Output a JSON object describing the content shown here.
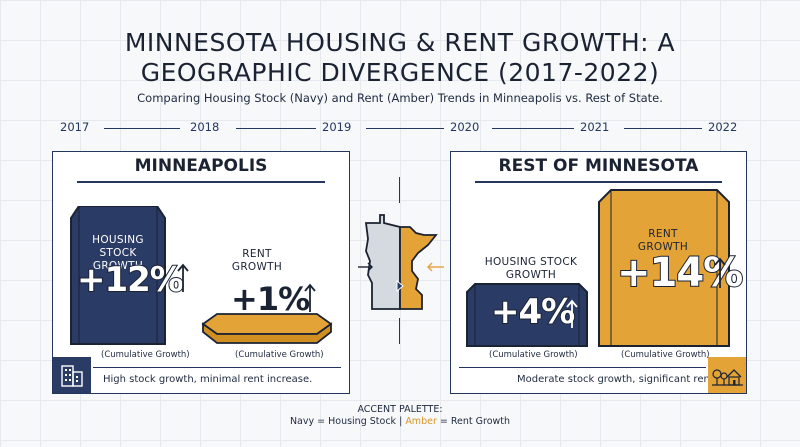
{
  "title_line1": "MINNESOTA HOUSING & RENT GROWTH: A",
  "title_line2": "GEOGRAPHIC DIVERGENCE (2017-2022)",
  "subtitle": "Comparing Housing Stock (Navy) and Rent (Amber) Trends in Minneapolis vs. Rest of State.",
  "timeline": [
    "2017",
    "2018",
    "2019",
    "2020",
    "2021",
    "2022"
  ],
  "minneapolis": {
    "title": "MINNEAPOLIS",
    "housing_label_1": "HOUSING STOCK",
    "housing_label_2": "GROWTH",
    "housing_value": "+12%",
    "rent_label_1": "RENT",
    "rent_label_2": "GROWTH",
    "rent_value": "+1%",
    "cumulative_left": "(Cumulative Growth)",
    "cumulative_right": "(Cumulative Growth)",
    "summary": "High stock growth, minimal rent increase.",
    "icon": "city-buildings-icon"
  },
  "rest_of_state": {
    "title": "REST OF MINNESOTA",
    "housing_label_1": "HOUSING STOCK",
    "housing_label_2": "GROWTH",
    "housing_value": "+4%",
    "rent_label_1": "RENT",
    "rent_label_2": "GROWTH",
    "rent_value": "+14%",
    "cumulative_left": "(Cumulative Growth)",
    "cumulative_right": "(Cumulative Growth)",
    "summary": "Moderate stock growth, significant rent hike.",
    "icon": "rural-house-trees-icon"
  },
  "legend": {
    "heading": "ACCENT PALETTE:",
    "navy_text": "Navy = Housing Stock",
    "separator": "|",
    "amber_word": "Amber",
    "amber_rest": "= Rent Growth"
  },
  "colors": {
    "navy": "#2a3b66",
    "amber": "#e3a337",
    "outline": "#1b2333"
  }
}
